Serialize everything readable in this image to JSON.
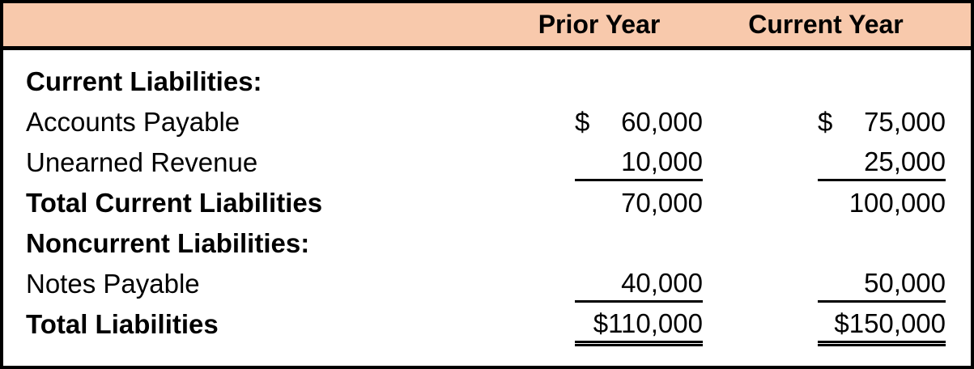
{
  "header": {
    "prior_year_label": "Prior Year",
    "current_year_label": "Current Year"
  },
  "colors": {
    "header_bg": "#F8C9AC",
    "border": "#000000",
    "text": "#000000",
    "body_bg": "#FFFFFF"
  },
  "rows": [
    {
      "label": "Current Liabilities:",
      "bold": true,
      "rule": "none",
      "prior_currency": "",
      "prior_value": "",
      "current_currency": "",
      "current_value": ""
    },
    {
      "label": "Accounts Payable",
      "bold": false,
      "rule": "none",
      "prior_currency": "$",
      "prior_value": "60,000",
      "current_currency": "$",
      "current_value": "75,000"
    },
    {
      "label": "Unearned Revenue",
      "bold": false,
      "rule": "single",
      "prior_currency": "",
      "prior_value": "10,000",
      "current_currency": "",
      "current_value": "25,000"
    },
    {
      "label": "Total Current Liabilities",
      "bold": true,
      "rule": "none",
      "prior_currency": "",
      "prior_value": "70,000",
      "current_currency": "",
      "current_value": "100,000"
    },
    {
      "label": "Noncurrent Liabilities:",
      "bold": true,
      "rule": "none",
      "prior_currency": "",
      "prior_value": "",
      "current_currency": "",
      "current_value": ""
    },
    {
      "label": "Notes Payable",
      "bold": false,
      "rule": "single",
      "prior_currency": "",
      "prior_value": "40,000",
      "current_currency": "",
      "current_value": "50,000"
    },
    {
      "label": "Total Liabilities",
      "bold": true,
      "rule": "double",
      "prior_currency": "",
      "prior_value": "$110,000",
      "current_currency": "",
      "current_value": "$150,000"
    }
  ]
}
